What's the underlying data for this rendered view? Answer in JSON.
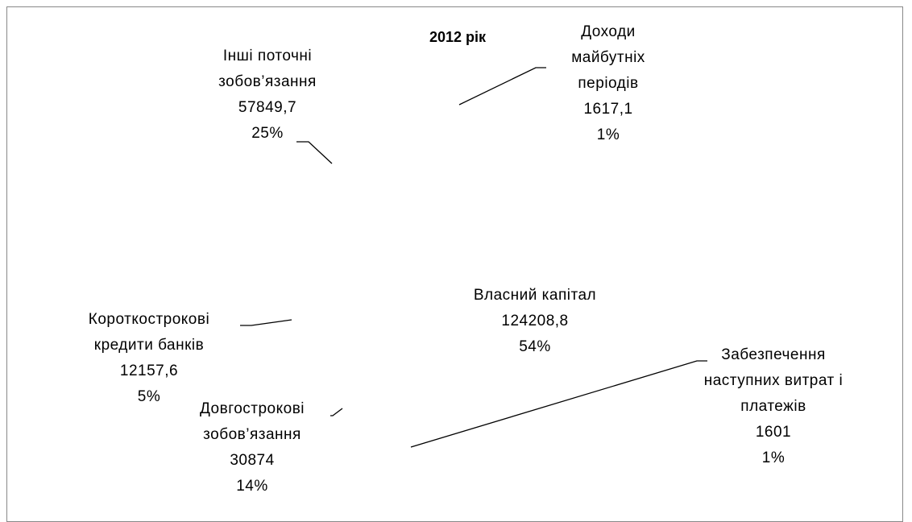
{
  "chart_data": {
    "type": "pie",
    "title": "2012 рік",
    "categories": [
      "Власний капітал",
      "Доходи майбутніх періодів",
      "Забезпечення наступних витрат і платежів",
      "Довгострокові зобов’язання",
      "Короткострокові кредити банків",
      "Інші поточні зобов’язання"
    ],
    "values": [
      124208.8,
      1617.1,
      1601,
      30874,
      12157.6,
      57849.7
    ],
    "value_labels": [
      "124208,8",
      "1617,1",
      "1601",
      "30874",
      "12157,6",
      "57849,7"
    ],
    "percent_labels": [
      "54%",
      "1%",
      "1%",
      "14%",
      "5%",
      "25%"
    ],
    "color": "#ffffff"
  }
}
